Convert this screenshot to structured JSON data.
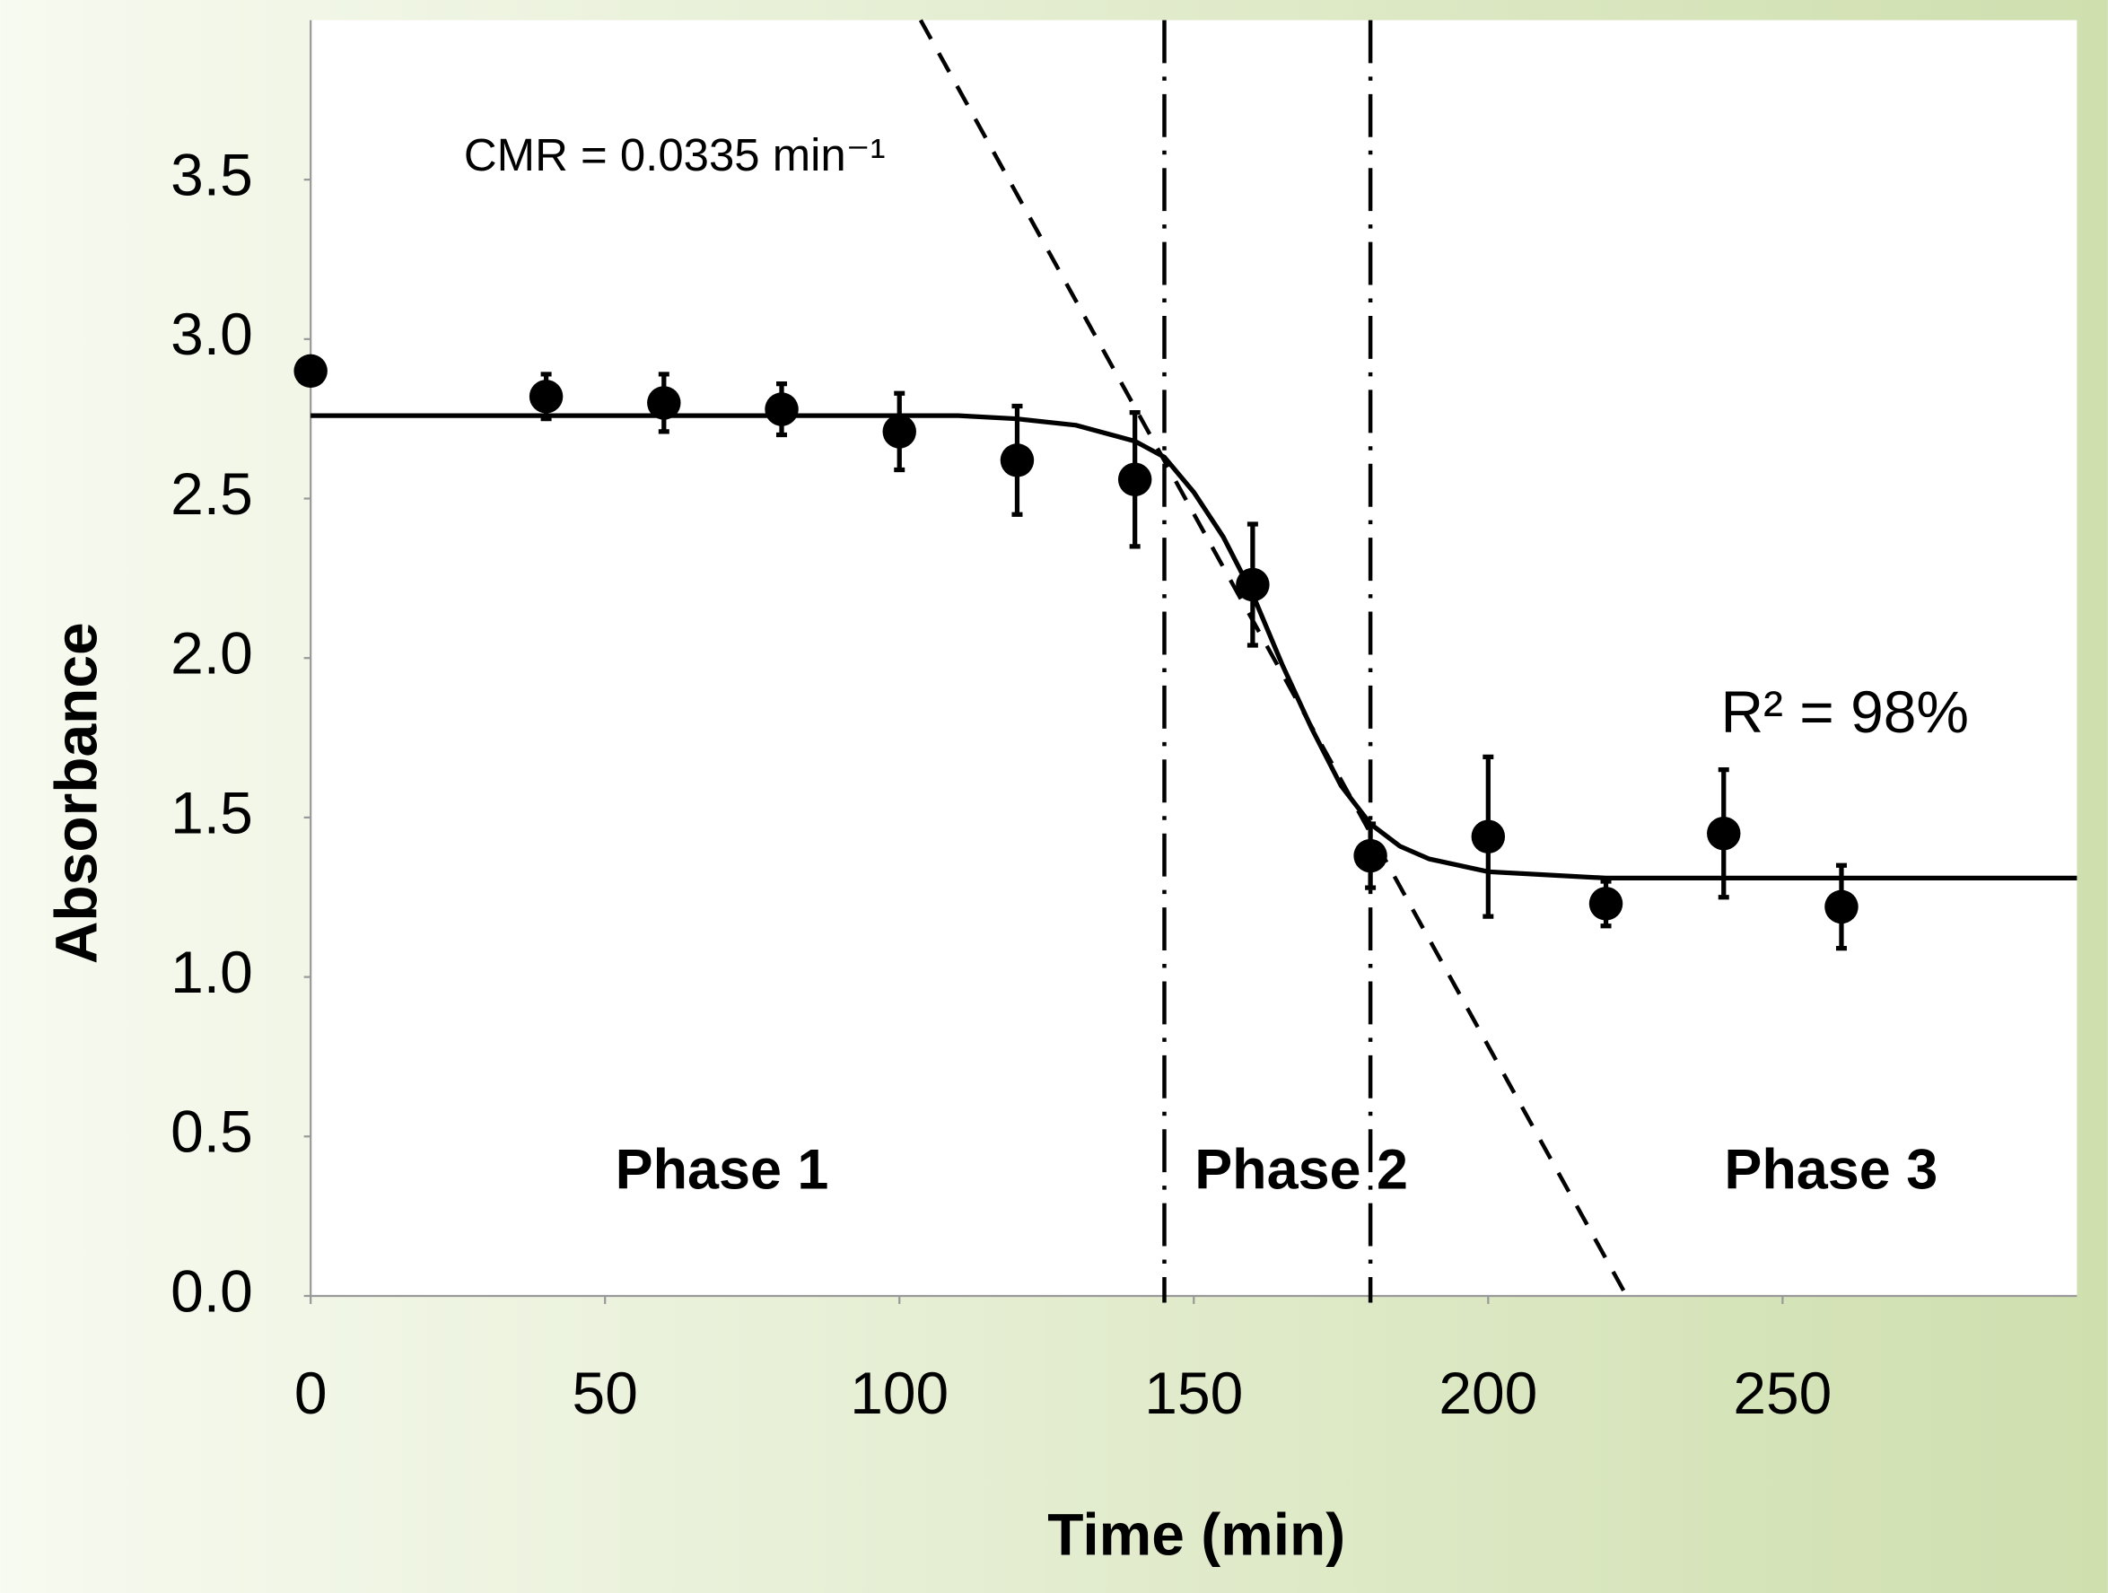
{
  "chart_data": {
    "type": "scatter",
    "xlabel": "Time (min)",
    "ylabel": "Absorbance",
    "xlim": [
      0,
      300
    ],
    "ylim": [
      0,
      4
    ],
    "xticks": [
      0,
      50,
      100,
      150,
      200,
      250
    ],
    "yticks": [
      {
        "value": 0,
        "label": "0.0"
      },
      0.5,
      {
        "value": 1,
        "label": "1.0"
      },
      1.5,
      {
        "value": 2,
        "label": "2.0"
      },
      2.5,
      {
        "value": 3,
        "label": "3.0"
      },
      3.5
    ],
    "series": [
      {
        "type": "scatter",
        "color": "#000000",
        "x": [
          0,
          40,
          60,
          80,
          100,
          120,
          140,
          160,
          180,
          200,
          220,
          240,
          260
        ],
        "values": [
          2.9,
          2.82,
          2.8,
          2.78,
          2.71,
          2.62,
          2.56,
          2.23,
          1.38,
          1.44,
          1.23,
          1.45,
          1.22
        ],
        "errors": [
          null,
          0.07,
          0.09,
          0.08,
          0.12,
          0.17,
          0.21,
          0.19,
          0.1,
          0.25,
          0.07,
          0.2,
          0.13
        ]
      },
      {
        "type": "line",
        "color": "#000000",
        "dash": false,
        "x": [
          0,
          110,
          120,
          130,
          140,
          145,
          150,
          155,
          160,
          165,
          170,
          175,
          180,
          185,
          190,
          200,
          210,
          220,
          300
        ],
        "values": [
          2.76,
          2.76,
          2.75,
          2.73,
          2.68,
          2.63,
          2.52,
          2.38,
          2.2,
          1.98,
          1.78,
          1.6,
          1.48,
          1.41,
          1.37,
          1.33,
          1.32,
          1.31,
          1.31
        ]
      },
      {
        "type": "line",
        "color": "#000000",
        "dash": true,
        "x": [
          103.6,
          223.5
        ],
        "values": [
          4,
          0
        ]
      }
    ],
    "vlines": [
      145,
      180
    ],
    "annotations": [
      "CMR = 0.0335 min⁻¹",
      "R² = 98%",
      "Phase 1",
      "Phase 2",
      "Phase 3"
    ]
  }
}
